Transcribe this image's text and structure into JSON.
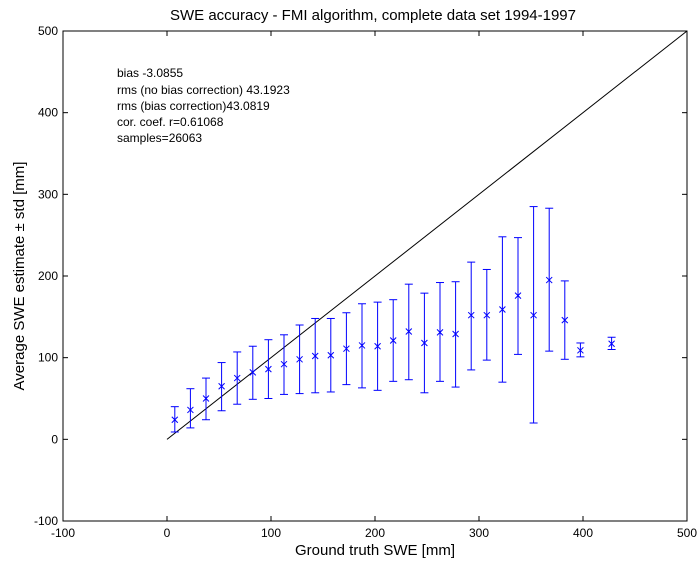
{
  "chart_data": {
    "type": "scatter",
    "title": "SWE accuracy - FMI algorithm, complete data set 1994-1997",
    "xlabel": "Ground truth SWE [mm]",
    "ylabel": "Average SWE estimate  ± std [mm]",
    "xlim": [
      -100,
      500
    ],
    "ylim": [
      -100,
      500
    ],
    "xticks": [
      -100,
      0,
      100,
      200,
      300,
      400,
      500
    ],
    "yticks": [
      -100,
      0,
      100,
      200,
      300,
      400,
      500
    ],
    "grid": false,
    "annotations": [
      "bias -3.0855",
      "rms (no bias correction) 43.1923",
      "rms (bias correction)43.0819",
      "cor. coef. r=0.61068",
      "samples=26063"
    ],
    "reference_line": {
      "x": [
        0,
        500
      ],
      "y": [
        0,
        500
      ]
    },
    "marker_color": "#0000ff",
    "points": [
      {
        "x": 7.5,
        "y": 24,
        "lo": 9,
        "hi": 40
      },
      {
        "x": 22.5,
        "y": 36,
        "lo": 14,
        "hi": 62
      },
      {
        "x": 37.5,
        "y": 50,
        "lo": 24,
        "hi": 75
      },
      {
        "x": 52.5,
        "y": 65,
        "lo": 35,
        "hi": 94
      },
      {
        "x": 67.5,
        "y": 75,
        "lo": 43,
        "hi": 107
      },
      {
        "x": 82.5,
        "y": 82,
        "lo": 49,
        "hi": 114
      },
      {
        "x": 97.5,
        "y": 86,
        "lo": 50,
        "hi": 122
      },
      {
        "x": 112.5,
        "y": 92,
        "lo": 55,
        "hi": 128
      },
      {
        "x": 127.5,
        "y": 98,
        "lo": 56,
        "hi": 140
      },
      {
        "x": 142.5,
        "y": 102,
        "lo": 57,
        "hi": 148
      },
      {
        "x": 157.5,
        "y": 103,
        "lo": 58,
        "hi": 148
      },
      {
        "x": 172.5,
        "y": 111,
        "lo": 67,
        "hi": 155
      },
      {
        "x": 187.5,
        "y": 115,
        "lo": 63,
        "hi": 166
      },
      {
        "x": 202.5,
        "y": 114,
        "lo": 60,
        "hi": 168
      },
      {
        "x": 217.5,
        "y": 121,
        "lo": 71,
        "hi": 171
      },
      {
        "x": 232.5,
        "y": 132,
        "lo": 73,
        "hi": 190
      },
      {
        "x": 247.5,
        "y": 118,
        "lo": 57,
        "hi": 179
      },
      {
        "x": 262.5,
        "y": 131,
        "lo": 71,
        "hi": 192
      },
      {
        "x": 277.5,
        "y": 129,
        "lo": 64,
        "hi": 193
      },
      {
        "x": 292.5,
        "y": 152,
        "lo": 85,
        "hi": 217
      },
      {
        "x": 307.5,
        "y": 152,
        "lo": 97,
        "hi": 208
      },
      {
        "x": 322.5,
        "y": 159,
        "lo": 70,
        "hi": 248
      },
      {
        "x": 337.5,
        "y": 176,
        "lo": 104,
        "hi": 247
      },
      {
        "x": 352.5,
        "y": 152,
        "lo": 20,
        "hi": 285
      },
      {
        "x": 367.5,
        "y": 195,
        "lo": 108,
        "hi": 283
      },
      {
        "x": 382.5,
        "y": 146,
        "lo": 98,
        "hi": 194
      },
      {
        "x": 397.5,
        "y": 109,
        "lo": 101,
        "hi": 118
      },
      {
        "x": 427.5,
        "y": 117,
        "lo": 110,
        "hi": 125
      }
    ]
  }
}
